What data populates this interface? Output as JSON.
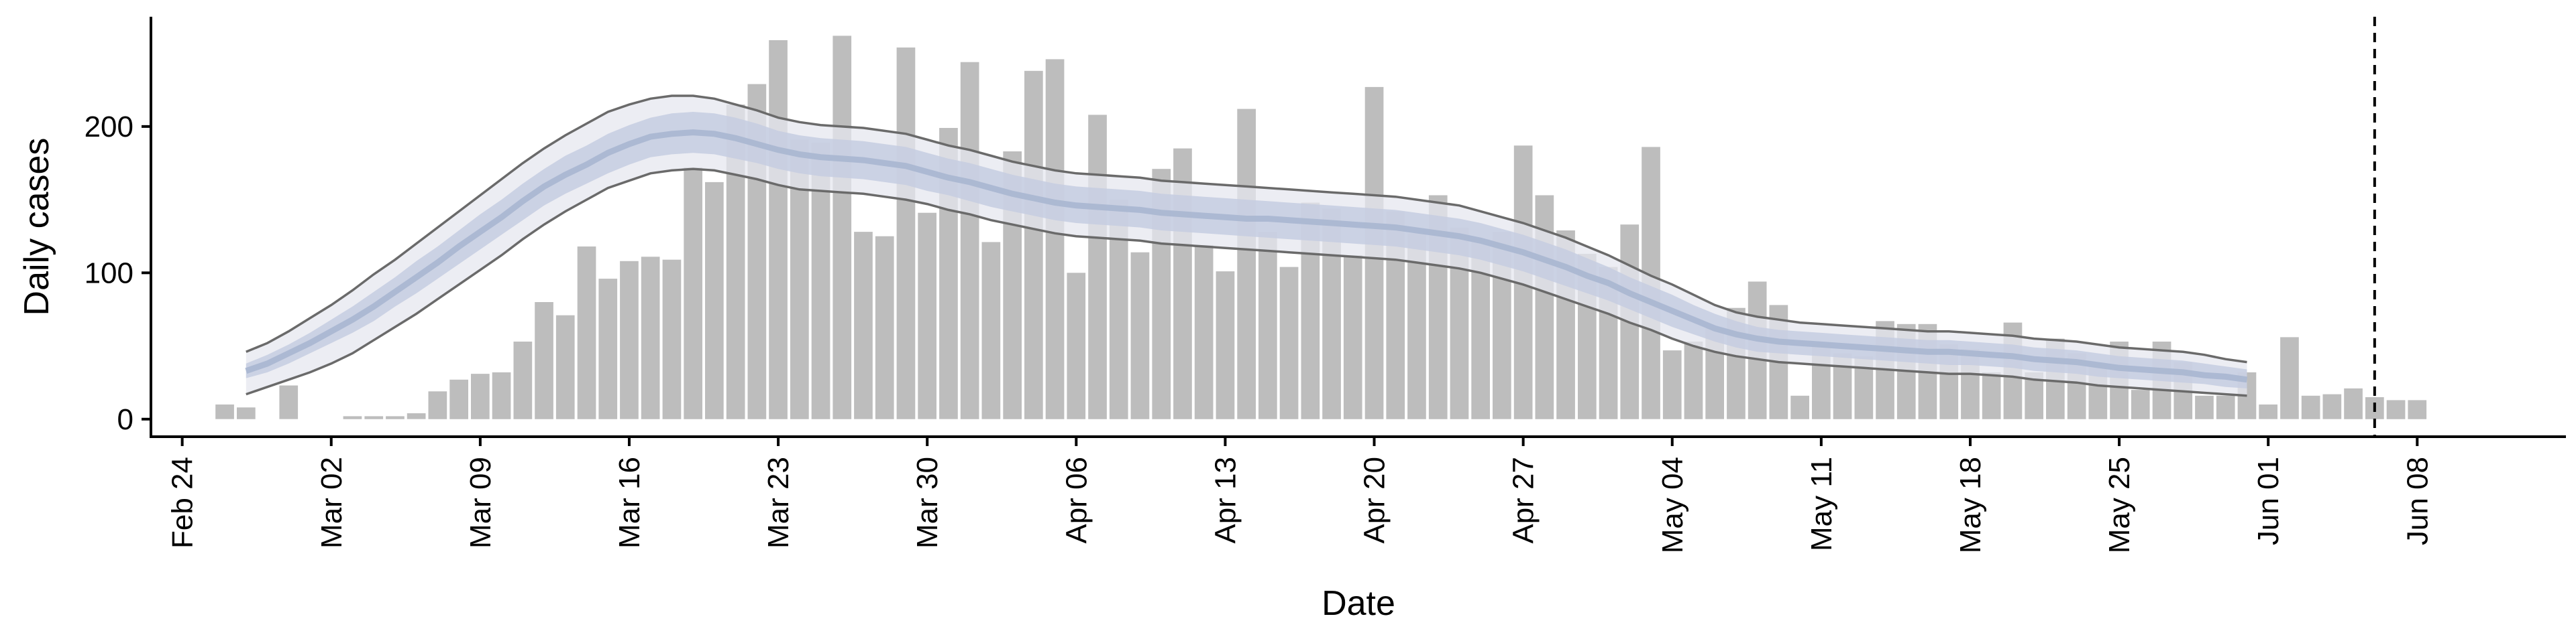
{
  "chart_data": {
    "type": "bar",
    "title": "",
    "xlabel": "Date",
    "ylabel": "Daily cases",
    "ylim": [
      -12,
      275
    ],
    "grid": false,
    "legend": "none",
    "x_tick_labels": [
      "Feb 24",
      "Mar 02",
      "Mar 09",
      "Mar 16",
      "Mar 23",
      "Mar 30",
      "Apr 06",
      "Apr 13",
      "Apr 20",
      "Apr 27",
      "May 04",
      "May 11",
      "May 18",
      "May 25",
      "Jun 01",
      "Jun 08"
    ],
    "y_ticks": [
      0,
      100,
      200
    ],
    "y_tick_labels": [
      "0",
      "100",
      "200"
    ],
    "bars_start": "2020-02-26",
    "bar_values": [
      10,
      8,
      0,
      23,
      0,
      0,
      2,
      2,
      2,
      4,
      19,
      27,
      31,
      32,
      53,
      80,
      71,
      118,
      96,
      108,
      111,
      109,
      172,
      162,
      215,
      229,
      259,
      191,
      189,
      262,
      128,
      125,
      254,
      141,
      199,
      244,
      121,
      183,
      238,
      246,
      100,
      208,
      150,
      114,
      171,
      185,
      119,
      101,
      212,
      128,
      104,
      148,
      144,
      112,
      227,
      142,
      127,
      153,
      131,
      123,
      128,
      187,
      153,
      129,
      113,
      104,
      133,
      186,
      47,
      53,
      62,
      76,
      94,
      78,
      16,
      51,
      45,
      43,
      67,
      65,
      65,
      51,
      48,
      32,
      66,
      32,
      55,
      45,
      38,
      53,
      20,
      53,
      39,
      16,
      16,
      32,
      10,
      56,
      16,
      17,
      21,
      15,
      13,
      13
    ],
    "band_start": "2020-02-27",
    "band_median": [
      33,
      38,
      45,
      52,
      60,
      68,
      77,
      87,
      97,
      107,
      118,
      128,
      138,
      149,
      159,
      167,
      174,
      182,
      188,
      193,
      195,
      196,
      195,
      192,
      188,
      184,
      181,
      179,
      178,
      177,
      175,
      173,
      169,
      165,
      162,
      158,
      154,
      151,
      148,
      146,
      145,
      144,
      143,
      141,
      140,
      139,
      138,
      137,
      137,
      136,
      135,
      134,
      133,
      132,
      131,
      129,
      127,
      125,
      122,
      118,
      114,
      109,
      104,
      98,
      93,
      86,
      80,
      74,
      68,
      62,
      58,
      55,
      53,
      52,
      51,
      50,
      49,
      48,
      47,
      46,
      46,
      45,
      44,
      43,
      41,
      40,
      39,
      37,
      35,
      34,
      33,
      32,
      30,
      29,
      27
    ],
    "band_inner_lower": [
      28,
      32,
      38,
      45,
      52,
      59,
      67,
      77,
      86,
      96,
      106,
      116,
      126,
      136,
      146,
      154,
      161,
      168,
      174,
      179,
      181,
      182,
      181,
      178,
      175,
      171,
      168,
      166,
      165,
      164,
      162,
      160,
      156,
      153,
      149,
      145,
      142,
      139,
      136,
      134,
      133,
      132,
      131,
      129,
      128,
      127,
      126,
      125,
      124,
      123,
      122,
      121,
      120,
      119,
      118,
      116,
      114,
      112,
      109,
      105,
      101,
      96,
      91,
      86,
      81,
      75,
      69,
      63,
      58,
      53,
      49,
      46,
      45,
      44,
      43,
      42,
      41,
      40,
      39,
      38,
      37,
      37,
      36,
      35,
      33,
      32,
      31,
      29,
      28,
      27,
      26,
      25,
      24,
      22,
      21
    ],
    "band_inner_upper": [
      38,
      44,
      51,
      59,
      68,
      77,
      87,
      97,
      108,
      118,
      129,
      140,
      150,
      161,
      171,
      180,
      187,
      195,
      201,
      206,
      209,
      210,
      209,
      206,
      202,
      197,
      194,
      192,
      191,
      190,
      188,
      186,
      182,
      178,
      175,
      171,
      167,
      164,
      161,
      159,
      158,
      157,
      156,
      154,
      153,
      152,
      151,
      150,
      149,
      148,
      147,
      146,
      145,
      144,
      143,
      141,
      139,
      137,
      134,
      130,
      126,
      121,
      116,
      110,
      104,
      97,
      91,
      85,
      78,
      72,
      67,
      63,
      61,
      60,
      59,
      58,
      57,
      56,
      55,
      54,
      54,
      53,
      52,
      51,
      49,
      48,
      47,
      45,
      43,
      42,
      41,
      40,
      38,
      36,
      34
    ],
    "band_outer_lower": [
      17,
      22,
      27,
      32,
      38,
      45,
      54,
      63,
      72,
      82,
      92,
      102,
      112,
      123,
      133,
      142,
      150,
      158,
      163,
      168,
      170,
      171,
      170,
      167,
      164,
      160,
      157,
      156,
      155,
      154,
      152,
      150,
      147,
      143,
      140,
      136,
      133,
      130,
      127,
      125,
      124,
      123,
      122,
      120,
      119,
      118,
      117,
      116,
      115,
      114,
      113,
      112,
      111,
      110,
      109,
      107,
      105,
      103,
      100,
      96,
      92,
      87,
      82,
      77,
      72,
      66,
      61,
      55,
      50,
      46,
      43,
      41,
      39,
      38,
      37,
      36,
      35,
      34,
      33,
      32,
      31,
      31,
      30,
      29,
      27,
      26,
      25,
      23,
      22,
      21,
      20,
      19,
      18,
      17,
      16
    ],
    "band_outer_upper": [
      46,
      52,
      60,
      69,
      78,
      88,
      99,
      109,
      120,
      131,
      142,
      153,
      164,
      175,
      185,
      194,
      202,
      210,
      215,
      219,
      221,
      221,
      219,
      215,
      211,
      206,
      203,
      201,
      200,
      199,
      197,
      195,
      191,
      187,
      184,
      180,
      176,
      173,
      170,
      168,
      167,
      166,
      165,
      163,
      162,
      161,
      160,
      159,
      158,
      157,
      156,
      155,
      154,
      153,
      152,
      150,
      148,
      146,
      142,
      138,
      134,
      129,
      124,
      118,
      112,
      105,
      98,
      92,
      85,
      78,
      73,
      70,
      68,
      66,
      65,
      64,
      63,
      62,
      61,
      60,
      60,
      59,
      58,
      57,
      55,
      54,
      53,
      51,
      49,
      48,
      47,
      46,
      44,
      41,
      39
    ],
    "vline_date": "2020-06-06",
    "colors": {
      "bars": "#bdbdbd",
      "band_outer": "#e5e7ef",
      "band_inner": "#c5cde0",
      "median": "#a9b6d0",
      "bound_lines": "#6a6a6a",
      "axes": "#000000"
    }
  }
}
